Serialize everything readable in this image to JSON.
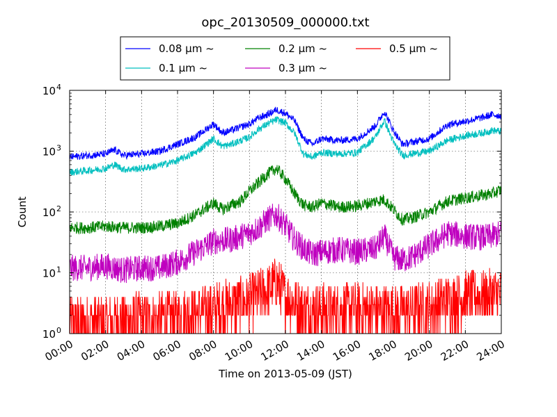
{
  "chart_data": {
    "type": "line",
    "title": "opc_20130509_000000.txt",
    "xlabel": "Time on 2013-05-09 (JST)",
    "ylabel": "Count",
    "yscale": "log",
    "ylim": [
      1,
      10000
    ],
    "xlim": [
      "00:00",
      "24:00"
    ],
    "grid": true,
    "legend_position": "top-center",
    "x_ticks": [
      "00:00",
      "02:00",
      "04:00",
      "06:00",
      "08:00",
      "10:00",
      "12:00",
      "14:00",
      "16:00",
      "18:00",
      "20:00",
      "22:00",
      "24:00"
    ],
    "y_ticks": [
      {
        "value": 1,
        "base": "10",
        "exp": "0"
      },
      {
        "value": 10,
        "base": "10",
        "exp": "1"
      },
      {
        "value": 100,
        "base": "10",
        "exp": "2"
      },
      {
        "value": 1000,
        "base": "10",
        "exp": "3"
      },
      {
        "value": 10000,
        "base": "10",
        "exp": "4"
      }
    ],
    "series": [
      {
        "name": "0.08 μm ~",
        "color": "#0000ff",
        "noise": 0.06,
        "x": [
          0,
          1,
          2,
          2.5,
          3,
          4,
          5,
          6,
          7,
          8,
          8.5,
          9,
          10,
          10.5,
          11,
          11.5,
          12,
          12.5,
          13,
          13.5,
          14,
          15,
          16,
          17,
          17.5,
          18,
          18.5,
          19,
          20,
          21,
          22,
          23,
          23.5,
          24
        ],
        "values": [
          800,
          850,
          900,
          1050,
          850,
          900,
          1000,
          1300,
          1700,
          2800,
          2000,
          2200,
          2800,
          3500,
          4000,
          4800,
          4200,
          3200,
          1600,
          1300,
          1600,
          1500,
          1600,
          2600,
          4500,
          2200,
          1300,
          1400,
          1600,
          2700,
          3100,
          3600,
          4000,
          3800
        ]
      },
      {
        "name": "0.1 μm ~",
        "color": "#00bfbf",
        "noise": 0.06,
        "x": [
          0,
          1,
          2,
          2.5,
          3,
          4,
          5,
          6,
          7,
          8,
          8.5,
          9,
          10,
          10.5,
          11,
          11.5,
          12,
          12.5,
          13,
          13.5,
          14,
          15,
          16,
          17,
          17.5,
          18,
          18.5,
          19,
          20,
          21,
          22,
          23,
          23.5,
          24
        ],
        "values": [
          450,
          480,
          520,
          600,
          500,
          520,
          580,
          700,
          950,
          1600,
          1200,
          1300,
          1700,
          2300,
          2800,
          3300,
          2900,
          2000,
          900,
          800,
          950,
          900,
          950,
          1700,
          3200,
          1400,
          850,
          900,
          1000,
          1500,
          1800,
          2000,
          2200,
          2100
        ]
      },
      {
        "name": "0.2 μm ~",
        "color": "#008000",
        "noise": 0.1,
        "x": [
          0,
          1,
          2,
          3,
          4,
          5,
          6,
          7,
          8,
          8.5,
          9,
          9.5,
          10,
          10.5,
          11,
          11.5,
          12,
          12.5,
          13,
          13.5,
          14,
          15,
          16,
          17,
          17.5,
          18,
          18.5,
          19,
          20,
          21,
          22,
          23,
          23.5,
          24
        ],
        "values": [
          55,
          55,
          58,
          55,
          55,
          58,
          65,
          90,
          140,
          110,
          130,
          150,
          220,
          300,
          420,
          520,
          350,
          200,
          130,
          120,
          140,
          120,
          125,
          150,
          160,
          110,
          75,
          80,
          100,
          150,
          170,
          190,
          200,
          230
        ]
      },
      {
        "name": "0.3 μm ~",
        "color": "#bf00bf",
        "noise": 0.22,
        "x": [
          0,
          1,
          2,
          3,
          4,
          5,
          6,
          7,
          8,
          9,
          10,
          10.5,
          11,
          11.5,
          12,
          12.5,
          13,
          13.5,
          14,
          15,
          16,
          17,
          17.5,
          18,
          18.5,
          19,
          20,
          20.5,
          21,
          22,
          23,
          23.5,
          24
        ],
        "values": [
          12,
          12,
          13,
          11,
          12,
          12,
          15,
          22,
          33,
          35,
          45,
          55,
          75,
          90,
          60,
          35,
          25,
          20,
          22,
          24,
          22,
          25,
          40,
          18,
          16,
          18,
          28,
          35,
          45,
          40,
          38,
          40,
          45
        ]
      },
      {
        "name": "0.5 μm ~",
        "color": "#ff0000",
        "noise": 0.45,
        "x": [
          0,
          2,
          4,
          6,
          8,
          10,
          11,
          11.5,
          12,
          13,
          14,
          16,
          18,
          20,
          21,
          22,
          23,
          24
        ],
        "values": [
          1.6,
          1.6,
          1.7,
          1.8,
          2.5,
          3.5,
          5,
          7,
          4,
          2.5,
          2.5,
          2.5,
          2.3,
          2.6,
          3.5,
          4,
          4,
          4.5
        ]
      }
    ]
  }
}
